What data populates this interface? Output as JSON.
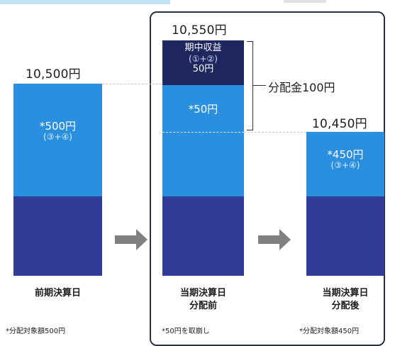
{
  "bars": [
    {
      "id": "previous",
      "total": "10,500円",
      "segment_main": "*500円",
      "segment_sub": "(③+④)",
      "caption_line1": "前期決算日",
      "caption_line2": "",
      "note": "*分配対象額500円"
    },
    {
      "id": "current-before",
      "total": "10,550円",
      "income_title": "期中収益",
      "income_sub": "(①+②)",
      "income_value": "50円",
      "segment_main": "*50円",
      "caption_line1": "当期決算日",
      "caption_line2": "分配前",
      "note": "*50円を取崩し"
    },
    {
      "id": "current-after",
      "total": "10,450円",
      "segment_main": "*450円",
      "segment_sub": "(③+④)",
      "caption_line1": "当期決算日",
      "caption_line2": "分配後",
      "note": "*分配対象額450円"
    }
  ],
  "distribution_label": "分配金100円",
  "colors": {
    "base": "#303d98",
    "distributable": "#2b8fe0",
    "income": "#1f2760",
    "arrow": "#808080"
  }
}
